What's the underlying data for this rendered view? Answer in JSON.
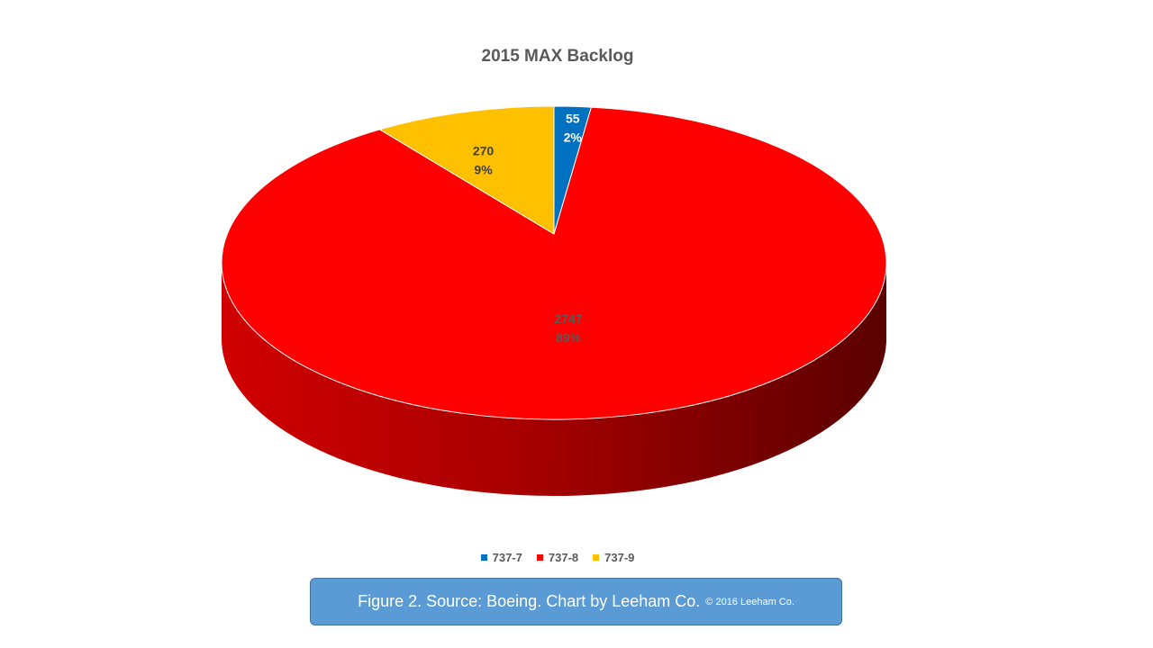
{
  "chart_data": {
    "type": "pie",
    "title": "2015 MAX Backlog",
    "categories": [
      "737-7",
      "737-8",
      "737-9"
    ],
    "values": [
      55,
      2747,
      270
    ],
    "percent_labels": [
      "2%",
      "89%",
      "9%"
    ],
    "colors": [
      "#0070c0",
      "#ff0000",
      "#ffc000"
    ],
    "label_colors": [
      "#ffffff",
      "#595959",
      "#404040"
    ],
    "legend_position": "bottom",
    "style": "3d"
  },
  "caption": {
    "main": "Figure 2. Source: Boeing. Chart by Leeham Co.",
    "small": "© 2016 Leeham  Co."
  }
}
